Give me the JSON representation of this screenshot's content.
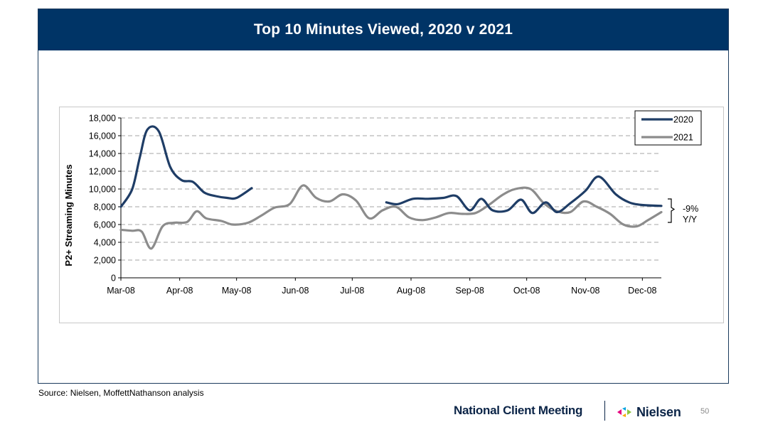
{
  "slide": {
    "title": "Top 10 Minutes Viewed, 2020 v 2021",
    "source": "Source: Nielsen, MoffettNathanson analysis",
    "footer_event": "National Client Meeting",
    "footer_brand": "Nielsen",
    "page_number": "50"
  },
  "colors": {
    "title_bar": "#003466",
    "series_2020": "#1f3d66",
    "series_2021": "#8c8c8c",
    "grid": "#a6a6a6"
  },
  "chart_data": {
    "type": "line",
    "title": "",
    "xlabel": "",
    "ylabel": "P2+ Streaming Minutes",
    "ylim": [
      0,
      18000
    ],
    "yticks": [
      0,
      2000,
      4000,
      6000,
      8000,
      10000,
      12000,
      14000,
      16000,
      18000
    ],
    "ytick_labels": [
      "0",
      "2,000",
      "4,000",
      "6,000",
      "8,000",
      "10,000",
      "12,000",
      "14,000",
      "16,000",
      "18,000"
    ],
    "xlim": [
      "2021-03-08",
      "2021-12-18"
    ],
    "xticks": [
      "2021-03-08",
      "2021-04-08",
      "2021-05-08",
      "2021-06-08",
      "2021-07-08",
      "2021-08-08",
      "2021-09-08",
      "2021-10-08",
      "2021-11-08",
      "2021-12-08"
    ],
    "xtick_labels": [
      "Mar-08",
      "Apr-08",
      "May-08",
      "Jun-08",
      "Jul-08",
      "Aug-08",
      "Sep-08",
      "Oct-08",
      "Nov-08",
      "Dec-08"
    ],
    "grid": "horizontal dashed",
    "legend": "top-right",
    "series": [
      {
        "name": "2020",
        "color": "#1f3d66",
        "segments": [
          [
            [
              "2021-03-08",
              8000
            ],
            [
              "2021-03-14",
              10000
            ],
            [
              "2021-03-18",
              13600
            ],
            [
              "2021-03-22",
              16700
            ],
            [
              "2021-03-28",
              16500
            ],
            [
              "2021-04-03",
              12500
            ],
            [
              "2021-04-09",
              11000
            ],
            [
              "2021-04-15",
              10800
            ],
            [
              "2021-04-21",
              9600
            ],
            [
              "2021-04-27",
              9200
            ],
            [
              "2021-05-03",
              9000
            ],
            [
              "2021-05-08",
              9000
            ],
            [
              "2021-05-16",
              10100
            ]
          ],
          [
            [
              "2021-07-26",
              8500
            ],
            [
              "2021-08-01",
              8300
            ],
            [
              "2021-08-09",
              8900
            ],
            [
              "2021-08-17",
              8900
            ],
            [
              "2021-08-25",
              9000
            ],
            [
              "2021-09-01",
              9200
            ],
            [
              "2021-09-08",
              7600
            ],
            [
              "2021-09-14",
              8900
            ],
            [
              "2021-09-20",
              7600
            ],
            [
              "2021-09-28",
              7600
            ],
            [
              "2021-10-05",
              8800
            ],
            [
              "2021-10-11",
              7300
            ],
            [
              "2021-10-18",
              8500
            ],
            [
              "2021-10-24",
              7400
            ],
            [
              "2021-10-31",
              8400
            ],
            [
              "2021-11-08",
              9800
            ],
            [
              "2021-11-15",
              11400
            ],
            [
              "2021-11-24",
              9400
            ],
            [
              "2021-12-01",
              8500
            ],
            [
              "2021-12-08",
              8200
            ],
            [
              "2021-12-18",
              8100
            ]
          ]
        ]
      },
      {
        "name": "2021",
        "color": "#8c8c8c",
        "segments": [
          [
            [
              "2021-03-08",
              5400
            ],
            [
              "2021-03-14",
              5300
            ],
            [
              "2021-03-19",
              5200
            ],
            [
              "2021-03-24",
              3300
            ],
            [
              "2021-03-30",
              5800
            ],
            [
              "2021-04-05",
              6200
            ],
            [
              "2021-04-12",
              6300
            ],
            [
              "2021-04-17",
              7500
            ],
            [
              "2021-04-22",
              6700
            ],
            [
              "2021-04-30",
              6400
            ],
            [
              "2021-05-06",
              6000
            ],
            [
              "2021-05-14",
              6200
            ],
            [
              "2021-05-21",
              7000
            ],
            [
              "2021-05-28",
              7900
            ],
            [
              "2021-06-05",
              8300
            ],
            [
              "2021-06-12",
              10400
            ],
            [
              "2021-06-19",
              9000
            ],
            [
              "2021-06-26",
              8600
            ],
            [
              "2021-07-03",
              9400
            ],
            [
              "2021-07-10",
              8700
            ],
            [
              "2021-07-17",
              6700
            ],
            [
              "2021-07-24",
              7600
            ],
            [
              "2021-07-31",
              8000
            ],
            [
              "2021-08-07",
              6800
            ],
            [
              "2021-08-14",
              6500
            ],
            [
              "2021-08-21",
              6800
            ],
            [
              "2021-08-28",
              7300
            ],
            [
              "2021-09-04",
              7200
            ],
            [
              "2021-09-11",
              7300
            ],
            [
              "2021-09-18",
              8200
            ],
            [
              "2021-09-25",
              9300
            ],
            [
              "2021-10-02",
              10000
            ],
            [
              "2021-10-10",
              10000
            ],
            [
              "2021-10-17",
              8400
            ],
            [
              "2021-10-24",
              7500
            ],
            [
              "2021-10-31",
              7400
            ],
            [
              "2021-11-07",
              8600
            ],
            [
              "2021-11-14",
              8000
            ],
            [
              "2021-11-21",
              7200
            ],
            [
              "2021-11-28",
              6000
            ],
            [
              "2021-12-05",
              5800
            ],
            [
              "2021-12-11",
              6500
            ],
            [
              "2021-12-18",
              7400
            ]
          ]
        ]
      }
    ],
    "annotation": {
      "text_line1": "-9%",
      "text_line2": "Y/Y"
    }
  }
}
